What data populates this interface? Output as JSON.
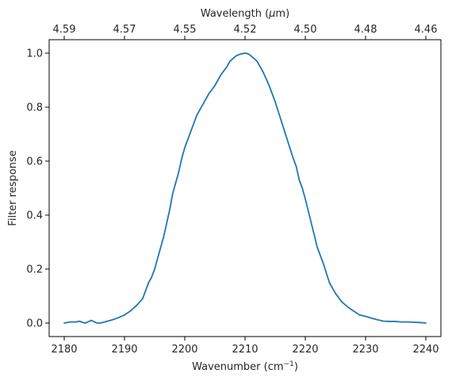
{
  "chart_data": {
    "type": "line",
    "xlabel": "Wavenumber (cm",
    "xlabel_sup": "−1",
    "xlabel_suffix": ")",
    "ylabel": "Filter response",
    "x2label": "Wavelength (",
    "x2label_mu": "μ",
    "x2label_suffix": "m)",
    "xlim": [
      2177.5,
      2242.5
    ],
    "ylim": [
      -0.05,
      1.05
    ],
    "xticks": [
      2180,
      2190,
      2200,
      2210,
      2220,
      2230,
      2240
    ],
    "yticks": [
      0.0,
      0.2,
      0.4,
      0.6,
      0.8,
      1.0
    ],
    "ytick_labels": [
      "0.0",
      "0.2",
      "0.4",
      "0.6",
      "0.8",
      "1.0"
    ],
    "x2ticks": [
      {
        "label": "4.59",
        "wavenumber": 2180
      },
      {
        "label": "4.57",
        "wavenumber": 2190
      },
      {
        "label": "4.55",
        "wavenumber": 2200
      },
      {
        "label": "4.52",
        "wavenumber": 2210
      },
      {
        "label": "4.50",
        "wavenumber": 2220
      },
      {
        "label": "4.48",
        "wavenumber": 2230
      },
      {
        "label": "4.46",
        "wavenumber": 2240
      }
    ],
    "grid": false,
    "color": "#1f77b4",
    "series": [
      {
        "x": [
          2180,
          2181,
          2182,
          2182.5,
          2183,
          2183.5,
          2184,
          2184.5,
          2185,
          2185.5,
          2186,
          2187,
          2188,
          2189,
          2190,
          2191,
          2192,
          2193,
          2193.5,
          2194,
          2194.5,
          2195,
          2195.5,
          2196,
          2196.5,
          2197,
          2197.5,
          2198,
          2198.5,
          2199,
          2199.5,
          2200,
          2200.5,
          2201,
          2202,
          2203,
          2204,
          2205,
          2206,
          2207,
          2207.5,
          2208,
          2208.5,
          2209,
          2209.5,
          2210,
          2210.5,
          2211,
          2211.5,
          2212,
          2212.5,
          2213,
          2214,
          2215,
          2216,
          2217,
          2218,
          2218.5,
          2219,
          2219.5,
          2220,
          2221,
          2222,
          2223,
          2224,
          2225,
          2226,
          2227,
          2228,
          2229,
          2230,
          2231,
          2232,
          2233,
          2234,
          2235,
          2236,
          2237,
          2238,
          2239,
          2240
        ],
        "y": [
          0.0,
          0.004,
          0.004,
          0.007,
          0.003,
          0.0,
          0.005,
          0.01,
          0.004,
          0.0,
          0.0,
          0.006,
          0.012,
          0.02,
          0.03,
          0.045,
          0.065,
          0.09,
          0.12,
          0.15,
          0.17,
          0.2,
          0.24,
          0.28,
          0.32,
          0.37,
          0.42,
          0.48,
          0.52,
          0.56,
          0.61,
          0.65,
          0.68,
          0.71,
          0.77,
          0.81,
          0.85,
          0.88,
          0.92,
          0.95,
          0.97,
          0.98,
          0.99,
          0.995,
          0.998,
          1.0,
          0.998,
          0.99,
          0.98,
          0.97,
          0.95,
          0.93,
          0.88,
          0.82,
          0.75,
          0.68,
          0.61,
          0.58,
          0.53,
          0.5,
          0.46,
          0.37,
          0.28,
          0.22,
          0.15,
          0.11,
          0.08,
          0.06,
          0.045,
          0.03,
          0.025,
          0.018,
          0.012,
          0.007,
          0.006,
          0.006,
          0.004,
          0.004,
          0.003,
          0.002,
          0.0
        ]
      }
    ]
  }
}
